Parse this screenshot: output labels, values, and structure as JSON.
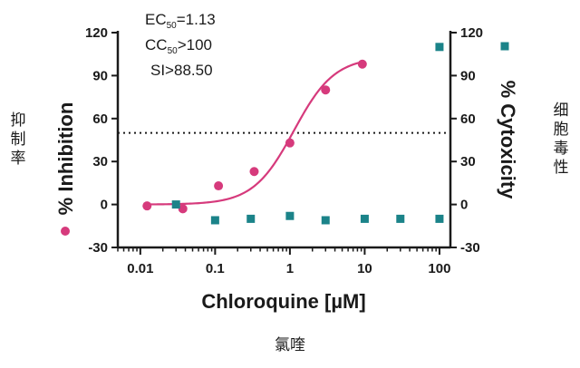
{
  "chart_data": {
    "type": "scatter",
    "xlabel": "Chloroquine [µM]",
    "xscale": "log",
    "xlim": [
      0.005,
      140
    ],
    "x_ticks": [
      "0.01",
      "0.1",
      "1",
      "10",
      "100"
    ],
    "ylabel_left": "% Inhibition",
    "ylabel_right": "% Cytoxicity",
    "ylim": [
      -30,
      120
    ],
    "y_ticks_left": [
      "-30",
      "0",
      "30",
      "60",
      "90",
      "120"
    ],
    "y_ticks_right": [
      "-30",
      "0",
      "30",
      "60",
      "90",
      "120"
    ],
    "reference_line": 50,
    "grid": false,
    "series": [
      {
        "name": "% Inhibition",
        "marker": "circle",
        "color": "#d63a7c",
        "axis": "left",
        "x": [
          0.0123,
          0.037,
          0.111,
          0.333,
          1.0,
          3.0,
          9.3
        ],
        "y": [
          -1,
          -3,
          13,
          23,
          43,
          80,
          98
        ],
        "fit": {
          "model": "4pl",
          "bottom": 0,
          "top": 103,
          "ec50": 1.13,
          "hill": 1.6
        }
      },
      {
        "name": "% Cytoxicity",
        "marker": "square",
        "color": "#1b8389",
        "axis": "right",
        "x": [
          0.03,
          0.1,
          0.3,
          1.0,
          3.0,
          10.0,
          30.0,
          100.0,
          100.0
        ],
        "y": [
          0,
          -11,
          -10,
          -8,
          -11,
          -10,
          -10,
          -10,
          110
        ]
      }
    ],
    "annotations": {
      "ec50_prefix": "EC",
      "ec50_sub": "50",
      "ec50_value": "=1.13",
      "cc50_prefix": "CC",
      "cc50_sub": "50",
      "cc50_value": ">100",
      "si": "SI>88.50"
    },
    "side_labels": {
      "left": [
        "抑",
        "制",
        "率"
      ],
      "right": [
        "细",
        "胞",
        "毒",
        "性"
      ],
      "bottom": "氯喹"
    }
  }
}
